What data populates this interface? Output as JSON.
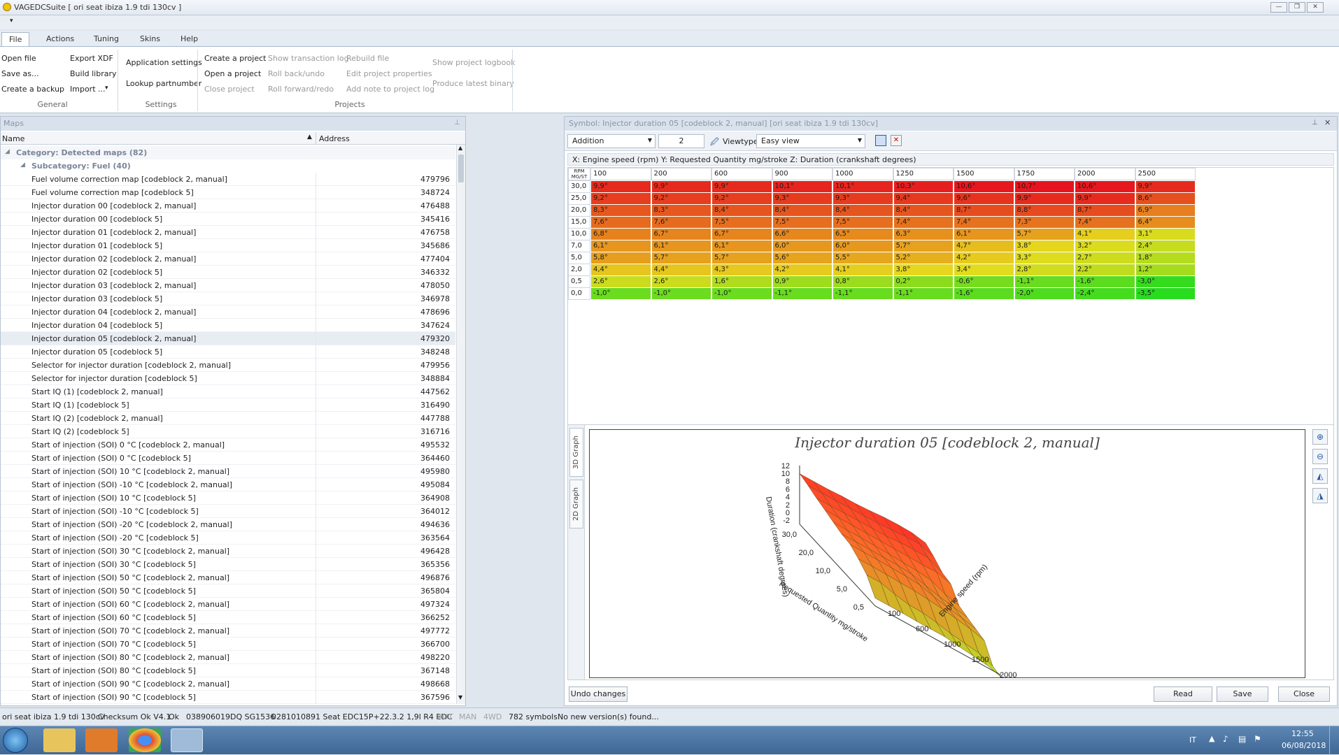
{
  "window": {
    "title": "VAGEDCSuite [ ori seat ibiza 1.9 tdi 130cv ]"
  },
  "tabs": [
    "File",
    "Actions",
    "Tuning",
    "Skins",
    "Help"
  ],
  "ribbon": {
    "general": {
      "items": [
        "Open file",
        "Save as...",
        "Create a backup",
        "Export XDF",
        "Build library",
        "Import ..."
      ],
      "label": "General"
    },
    "settings": {
      "items": [
        "Application settings",
        "Lookup partnumber"
      ],
      "label": "Settings"
    },
    "projects": {
      "items": [
        "Create a project",
        "Open a project",
        "Close project",
        "Show transaction log",
        "Roll back/undo",
        "Roll forward/redo",
        "Rebuild file",
        "Edit project properties",
        "Add note to project log",
        "Show project logbook",
        "Produce latest binary"
      ],
      "label": "Projects"
    }
  },
  "maps": {
    "title": "Maps",
    "col_name": "Name",
    "col_address": "Address",
    "category": "Category: Detected maps (82)",
    "subcategory": "Subcategory: Fuel (40)",
    "rows": [
      [
        "Fuel volume correction map [codeblock 2, manual]",
        "479796"
      ],
      [
        "Fuel volume correction map [codeblock 5]",
        "348724"
      ],
      [
        "Injector duration 00 [codeblock 2, manual]",
        "476488"
      ],
      [
        "Injector duration 00 [codeblock 5]",
        "345416"
      ],
      [
        "Injector duration 01 [codeblock 2, manual]",
        "476758"
      ],
      [
        "Injector duration 01 [codeblock 5]",
        "345686"
      ],
      [
        "Injector duration 02 [codeblock 2, manual]",
        "477404"
      ],
      [
        "Injector duration 02 [codeblock 5]",
        "346332"
      ],
      [
        "Injector duration 03 [codeblock 2, manual]",
        "478050"
      ],
      [
        "Injector duration 03 [codeblock 5]",
        "346978"
      ],
      [
        "Injector duration 04 [codeblock 2, manual]",
        "478696"
      ],
      [
        "Injector duration 04 [codeblock 5]",
        "347624"
      ],
      [
        "Injector duration 05 [codeblock 2, manual]",
        "479320"
      ],
      [
        "Injector duration 05 [codeblock 5]",
        "348248"
      ],
      [
        "Selector for injector duration [codeblock 2, manual]",
        "479956"
      ],
      [
        "Selector for injector duration [codeblock 5]",
        "348884"
      ],
      [
        "Start IQ (1) [codeblock 2, manual]",
        "447562"
      ],
      [
        "Start IQ (1) [codeblock 5]",
        "316490"
      ],
      [
        "Start IQ (2) [codeblock 2, manual]",
        "447788"
      ],
      [
        "Start IQ (2) [codeblock 5]",
        "316716"
      ],
      [
        "Start of injection (SOI) 0 °C [codeblock 2, manual]",
        "495532"
      ],
      [
        "Start of injection (SOI) 0 °C [codeblock 5]",
        "364460"
      ],
      [
        "Start of injection (SOI) 10 °C [codeblock 2, manual]",
        "495980"
      ],
      [
        "Start of injection (SOI) -10 °C [codeblock 2, manual]",
        "495084"
      ],
      [
        "Start of injection (SOI) 10 °C [codeblock 5]",
        "364908"
      ],
      [
        "Start of injection (SOI) -10 °C [codeblock 5]",
        "364012"
      ],
      [
        "Start of injection (SOI) -20 °C [codeblock 2, manual]",
        "494636"
      ],
      [
        "Start of injection (SOI) -20 °C [codeblock 5]",
        "363564"
      ],
      [
        "Start of injection (SOI) 30 °C [codeblock 2, manual]",
        "496428"
      ],
      [
        "Start of injection (SOI) 30 °C [codeblock 5]",
        "365356"
      ],
      [
        "Start of injection (SOI) 50 °C [codeblock 2, manual]",
        "496876"
      ],
      [
        "Start of injection (SOI) 50 °C [codeblock 5]",
        "365804"
      ],
      [
        "Start of injection (SOI) 60 °C [codeblock 2, manual]",
        "497324"
      ],
      [
        "Start of injection (SOI) 60 °C [codeblock 5]",
        "366252"
      ],
      [
        "Start of injection (SOI) 70 °C [codeblock 2, manual]",
        "497772"
      ],
      [
        "Start of injection (SOI) 70 °C [codeblock 5]",
        "366700"
      ],
      [
        "Start of injection (SOI) 80 °C [codeblock 2, manual]",
        "498220"
      ],
      [
        "Start of injection (SOI) 80 °C [codeblock 5]",
        "367148"
      ],
      [
        "Start of injection (SOI) 90 °C [codeblock 2, manual]",
        "498668"
      ],
      [
        "Start of injection (SOI) 90 °C [codeblock 5]",
        "367596"
      ]
    ],
    "selected_index": 12
  },
  "symbol": {
    "title": "Symbol: Injector duration 05 [codeblock 2, manual] [ori seat ibiza 1.9 tdi 130cv]",
    "mode": "Addition",
    "amount": "2",
    "viewtype_label": "Viewtype",
    "viewtype": "Easy view",
    "axis_info": "X: Engine speed (rpm) Y: Requested Quantity mg/stroke Z: Duration (crankshaft degrees)",
    "corner_top": "RPM",
    "corner_bottom": "MG/ST",
    "x_headers": [
      "100",
      "200",
      "600",
      "900",
      "1000",
      "1250",
      "1500",
      "1750",
      "2000",
      "2500"
    ],
    "y_headers": [
      "30,0",
      "25,0",
      "20,0",
      "15,0",
      "10,0",
      "7,0",
      "5,0",
      "2,0",
      "0,5",
      "0,0"
    ],
    "cells": [
      [
        "9,9°",
        "9,9°",
        "9,9°",
        "10,1°",
        "10,1°",
        "10,3°",
        "10,6°",
        "10,7°",
        "10,6°",
        "9,9°"
      ],
      [
        "9,2°",
        "9,2°",
        "9,2°",
        "9,3°",
        "9,3°",
        "9,4°",
        "9,6°",
        "9,9°",
        "9,9°",
        "8,6°"
      ],
      [
        "8,3°",
        "8,3°",
        "8,4°",
        "8,4°",
        "8,4°",
        "8,4°",
        "8,7°",
        "8,8°",
        "8,7°",
        "6,9°"
      ],
      [
        "7,6°",
        "7,6°",
        "7,5°",
        "7,5°",
        "7,5°",
        "7,4°",
        "7,4°",
        "7,3°",
        "7,4°",
        "6,4°"
      ],
      [
        "6,8°",
        "6,7°",
        "6,7°",
        "6,6°",
        "6,5°",
        "6,3°",
        "6,1°",
        "5,7°",
        "4,1°",
        "3,1°"
      ],
      [
        "6,1°",
        "6,1°",
        "6,1°",
        "6,0°",
        "6,0°",
        "5,7°",
        "4,7°",
        "3,8°",
        "3,2°",
        "2,4°"
      ],
      [
        "5,8°",
        "5,7°",
        "5,7°",
        "5,6°",
        "5,5°",
        "5,2°",
        "4,2°",
        "3,3°",
        "2,7°",
        "1,8°"
      ],
      [
        "4,4°",
        "4,4°",
        "4,3°",
        "4,2°",
        "4,1°",
        "3,8°",
        "3,4°",
        "2,8°",
        "2,2°",
        "1,2°"
      ],
      [
        "2,6°",
        "2,6°",
        "1,6°",
        "0,9°",
        "0,8°",
        "0,2°",
        "-0,6°",
        "-1,1°",
        "-1,6°",
        "-3,0°"
      ],
      [
        "-1,0°",
        "-1,0°",
        "-1,0°",
        "-1,1°",
        "-1,1°",
        "-1,1°",
        "-1,6°",
        "-2,0°",
        "-2,4°",
        "-3,5°"
      ]
    ],
    "graph_tabs": [
      "3D Graph",
      "2D Graph"
    ],
    "graph_title": "Injector duration 05 [codeblock 2, manual]",
    "z_label": "Duration (crankshaft degrees)",
    "y_label": "Requested Quantity mg/stroke",
    "x_label": "Engine speed (rpm)",
    "z_ticks": [
      "12",
      "10",
      "8",
      "6",
      "4",
      "2",
      "0",
      "-2"
    ],
    "y_ticks": [
      "30,0",
      "20,0",
      "10,0",
      "5,0",
      "0,5"
    ],
    "x_ticks": [
      "2000",
      "1500",
      "1000",
      "600",
      "100"
    ],
    "buttons": {
      "undo": "Undo changes",
      "read": "Read",
      "save": "Save",
      "close": "Close"
    }
  },
  "status": {
    "items": [
      "ori seat ibiza 1.9 tdi 130cv",
      "Checksum Ok V4.1",
      "Ok",
      "038906019DQ SG1536",
      "0281010891 Seat EDC15P+22.3.2 1,9l R4 EDC"
    ],
    "disabled": [
      "AUT",
      "MAN",
      "4WD"
    ],
    "symbols": "782 symbols",
    "update": "No new version(s) found..."
  },
  "taskbar": {
    "lang": "IT",
    "time": "12:55",
    "date": "06/08/2018"
  }
}
